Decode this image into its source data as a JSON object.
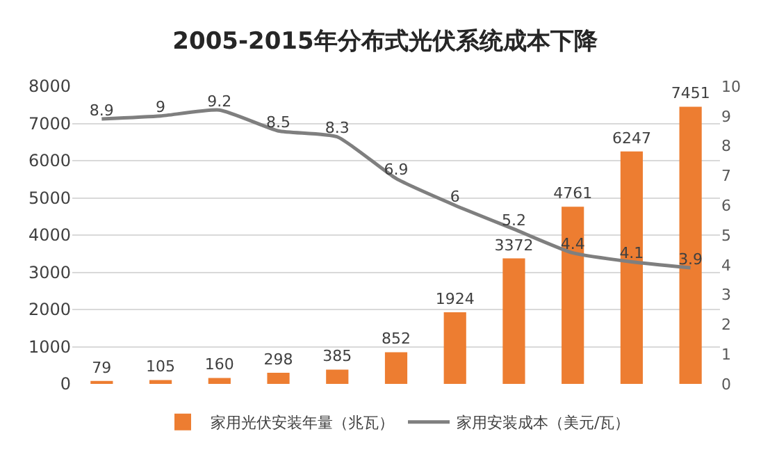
{
  "chart_data": {
    "type": "bar",
    "title": "2005-2015年分布式光伏系统成本下降",
    "categories": [
      null,
      null,
      null,
      null,
      null,
      null,
      null,
      null,
      null,
      null,
      null
    ],
    "series": [
      {
        "name": "家用光伏安装年量（兆瓦）",
        "color": "#ed7d31",
        "values": [
          79,
          105,
          160,
          298,
          385,
          852,
          1924,
          3372,
          4761,
          6247,
          7451
        ]
      },
      {
        "name": "家用安装成本（美元/瓦）",
        "type": "line",
        "axis": "y2",
        "color": "#7f7f7f",
        "values": [
          8.9,
          9,
          9.2,
          8.5,
          8.3,
          6.9,
          6,
          5.2,
          4.4,
          4.1,
          3.9
        ]
      }
    ],
    "ylim": [
      0,
      8000
    ],
    "yticks": [
      0,
      1000,
      2000,
      3000,
      4000,
      5000,
      6000,
      7000,
      8000
    ],
    "y2lim": [
      0,
      10
    ],
    "y2ticks": [
      0,
      1,
      2,
      3,
      4,
      5,
      6,
      7,
      8,
      9,
      10
    ],
    "data_labels": true,
    "grid": "y",
    "legend": "bottom",
    "tick_labels": "y",
    "marker": "none",
    "line_style": "solid"
  }
}
